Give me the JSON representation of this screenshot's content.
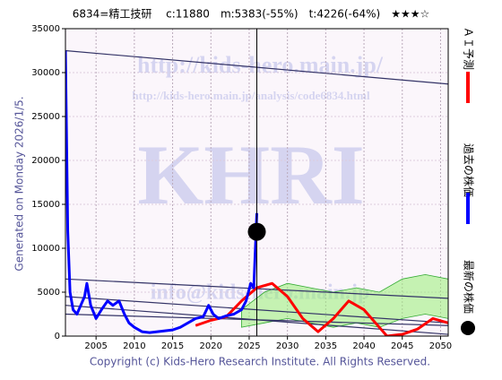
{
  "chart_data": {
    "type": "line",
    "title": "6834=精工技研　 c:11880　m:5383(-55%)　t:4226(-64%)　★★★☆",
    "side_note": "Generated on Monday 2026/1/5.",
    "copyright": "Copyright (c) Kids-Hero Research Institute. All Rights Reserved.",
    "watermarks": [
      "http://kids-hero.main.jp/",
      "http://kids-hero.main.jp/analysis/code6834.html",
      "KHRI",
      "info@kids-hero.main.jp"
    ],
    "xlim": [
      2001,
      2051
    ],
    "ylim": [
      0,
      35000
    ],
    "xticks": [
      2005,
      2010,
      2015,
      2020,
      2025,
      2030,
      2035,
      2040,
      2045,
      2050
    ],
    "yticks": [
      0,
      5000,
      10000,
      15000,
      20000,
      25000,
      30000,
      35000
    ],
    "grid": true,
    "series": [
      {
        "name": "ＡＩ予測",
        "color": "#ff0000",
        "x": [
          2018,
          2020,
          2022,
          2024,
          2026,
          2028,
          2030,
          2032,
          2034,
          2036,
          2038,
          2040,
          2042,
          2043,
          2045,
          2047,
          2049,
          2051
        ],
        "values": [
          1200,
          1800,
          2200,
          4000,
          5500,
          6000,
          4500,
          2000,
          500,
          2000,
          4000,
          3000,
          1000,
          0,
          200,
          800,
          2000,
          1500
        ]
      },
      {
        "name": "過去の株価",
        "color": "#0000ff",
        "x": [
          2001,
          2001.3,
          2001.6,
          2002,
          2002.5,
          2003,
          2003.5,
          2003.8,
          2004.3,
          2005,
          2005.7,
          2006.5,
          2007.2,
          2008,
          2008.7,
          2009.3,
          2010,
          2011,
          2012,
          2013,
          2014,
          2015,
          2016,
          2017,
          2018,
          2019,
          2019.7,
          2020.3,
          2021,
          2022,
          2023,
          2024,
          2024.6,
          2025.2,
          2025.6,
          2026
        ],
        "values": [
          32500,
          12000,
          5000,
          3000,
          2500,
          3500,
          4500,
          6000,
          3500,
          2000,
          3000,
          4000,
          3500,
          4000,
          2500,
          1500,
          1000,
          500,
          400,
          500,
          600,
          700,
          1000,
          1500,
          2000,
          2200,
          3500,
          2500,
          2000,
          2300,
          2500,
          3000,
          4000,
          6000,
          5500,
          14000
        ]
      }
    ],
    "latest": {
      "name": "最新の株価",
      "x": 2026,
      "value": 11880,
      "color": "#000000"
    },
    "trend_lines": [
      {
        "x": [
          2001,
          2051
        ],
        "values": [
          32500,
          28700
        ]
      },
      {
        "x": [
          2001,
          2051
        ],
        "values": [
          6500,
          4300
        ]
      },
      {
        "x": [
          2001,
          2051
        ],
        "values": [
          4500,
          1500
        ]
      },
      {
        "x": [
          2001,
          2051
        ],
        "values": [
          3500,
          200
        ]
      },
      {
        "x": [
          2001,
          2051
        ],
        "values": [
          2500,
          1200
        ]
      }
    ],
    "band": {
      "color": "#99ee77",
      "x": [
        2024,
        2027,
        2030,
        2033,
        2036,
        2039,
        2042,
        2045,
        2048,
        2051
      ],
      "upper": [
        3000,
        5000,
        6000,
        5500,
        5000,
        5500,
        5000,
        6500,
        7000,
        6500
      ],
      "lower": [
        1000,
        1500,
        2000,
        1500,
        1000,
        1500,
        1000,
        2000,
        2500,
        2000
      ]
    }
  }
}
